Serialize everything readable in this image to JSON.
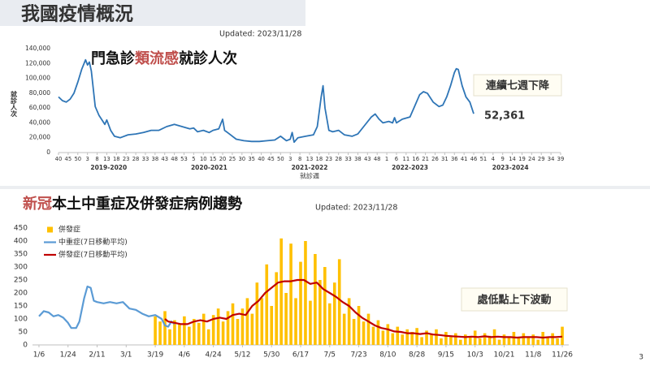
{
  "header": {
    "title": "我國疫情概況",
    "updated": "Updated: 2023/11/28"
  },
  "chart_data": [
    {
      "type": "line",
      "title_parts": [
        {
          "text": "門急診",
          "color": "#111111"
        },
        {
          "text": "類流感",
          "color": "#c0504d"
        },
        {
          "text": "就診人次",
          "color": "#111111"
        }
      ],
      "y_label": "就診人次",
      "x_label": "就診週",
      "seasons": [
        "2019-2020",
        "2020-2021",
        "2021-2022",
        "2022-2023",
        "2023-2024"
      ],
      "annotation": "連續七週下降",
      "xlim": [
        0,
        260
      ],
      "ylim": [
        0,
        140000
      ],
      "yticks": [
        0,
        {
          "value": 20000,
          "label": "20,000"
        },
        {
          "value": 40000,
          "label": "40,000"
        },
        {
          "value": 60000,
          "label": "60,000"
        },
        {
          "value": 80000,
          "label": "80,000"
        },
        {
          "value": 100000,
          "label": "100,000"
        },
        {
          "value": 120000,
          "label": "120,000"
        },
        {
          "value": 140000,
          "label": "140,000"
        }
      ],
      "xticks": [
        {
          "value": 0,
          "label": "40"
        },
        {
          "value": 5,
          "label": "45"
        },
        {
          "value": 10,
          "label": "50"
        },
        {
          "value": 15,
          "label": "3"
        },
        {
          "value": 20,
          "label": "8"
        },
        {
          "value": 25,
          "label": "13"
        },
        {
          "value": 30,
          "label": "18"
        },
        {
          "value": 35,
          "label": "23"
        },
        {
          "value": 40,
          "label": "28"
        },
        {
          "value": 45,
          "label": "33"
        },
        {
          "value": 50,
          "label": "38"
        },
        {
          "value": 55,
          "label": "43"
        },
        {
          "value": 60,
          "label": "48"
        },
        {
          "value": 65,
          "label": "53"
        },
        {
          "value": 70,
          "label": "5"
        },
        {
          "value": 75,
          "label": "10"
        },
        {
          "value": 80,
          "label": "15"
        },
        {
          "value": 85,
          "label": "20"
        },
        {
          "value": 90,
          "label": "25"
        },
        {
          "value": 95,
          "label": "30"
        },
        {
          "value": 100,
          "label": "35"
        },
        {
          "value": 105,
          "label": "40"
        },
        {
          "value": 110,
          "label": "45"
        },
        {
          "value": 115,
          "label": "50"
        },
        {
          "value": 120,
          "label": "3"
        },
        {
          "value": 125,
          "label": "8"
        },
        {
          "value": 130,
          "label": "13"
        },
        {
          "value": 135,
          "label": "18"
        },
        {
          "value": 140,
          "label": "23"
        },
        {
          "value": 145,
          "label": "28"
        },
        {
          "value": 150,
          "label": "33"
        },
        {
          "value": 155,
          "label": "38"
        },
        {
          "value": 160,
          "label": "43"
        },
        {
          "value": 165,
          "label": "48"
        },
        {
          "value": 170,
          "label": "1"
        },
        {
          "value": 175,
          "label": "6"
        },
        {
          "value": 180,
          "label": "11"
        },
        {
          "value": 185,
          "label": "16"
        },
        {
          "value": 190,
          "label": "21"
        },
        {
          "value": 195,
          "label": "26"
        },
        {
          "value": 200,
          "label": "31"
        },
        {
          "value": 205,
          "label": "36"
        },
        {
          "value": 210,
          "label": "41"
        },
        {
          "value": 215,
          "label": "46"
        },
        {
          "value": 220,
          "label": "51"
        },
        {
          "value": 225,
          "label": "4"
        },
        {
          "value": 230,
          "label": "9"
        },
        {
          "value": 235,
          "label": "14"
        },
        {
          "value": 240,
          "label": "19"
        },
        {
          "value": 245,
          "label": "24"
        },
        {
          "value": 250,
          "label": "29"
        },
        {
          "value": 255,
          "label": "34"
        },
        {
          "value": 260,
          "label": "39"
        }
      ],
      "series": [
        {
          "type": "line",
          "color": "#2e75b6",
          "x": [
            0,
            2,
            4,
            6,
            8,
            10,
            12,
            14,
            15,
            16,
            17,
            19,
            21,
            23,
            24,
            25,
            27,
            29,
            32,
            36,
            40,
            44,
            48,
            52,
            56,
            60,
            64,
            68,
            70,
            72,
            75,
            78,
            80,
            83,
            85,
            86,
            88,
            92,
            96,
            100,
            104,
            108,
            112,
            115,
            118,
            120,
            121,
            122,
            124,
            128,
            132,
            134,
            136,
            137,
            138,
            140,
            142,
            145,
            148,
            152,
            155,
            158,
            162,
            164,
            166,
            168,
            171,
            173,
            174,
            175,
            178,
            182,
            184,
            187,
            189,
            191,
            194,
            197,
            199,
            201,
            203,
            205,
            206,
            207,
            209,
            211,
            213,
            215
          ],
          "values": [
            75000,
            70000,
            68000,
            72000,
            80000,
            95000,
            112000,
            125000,
            118000,
            122000,
            110000,
            62000,
            50000,
            42000,
            38000,
            44000,
            30000,
            22000,
            20000,
            24000,
            25000,
            27000,
            30000,
            30000,
            35000,
            38000,
            35000,
            32000,
            33000,
            28000,
            30000,
            27000,
            30000,
            32000,
            45000,
            30000,
            26000,
            18000,
            16000,
            15000,
            15000,
            16000,
            17000,
            22000,
            16000,
            18000,
            27000,
            14000,
            20000,
            22000,
            24000,
            35000,
            75000,
            90000,
            60000,
            30000,
            28000,
            30000,
            24000,
            22000,
            25000,
            35000,
            48000,
            52000,
            45000,
            40000,
            42000,
            40000,
            47000,
            40000,
            45000,
            48000,
            60000,
            78000,
            82000,
            80000,
            68000,
            62000,
            64000,
            75000,
            90000,
            108000,
            113000,
            112000,
            90000,
            75000,
            68000,
            52361
          ],
          "value_labels": [
            null,
            null,
            null,
            null,
            null,
            null,
            null,
            null,
            null,
            null,
            null,
            null,
            null,
            null,
            null,
            null,
            null,
            null,
            null,
            null,
            null,
            null,
            null,
            null,
            null,
            null,
            null,
            null,
            null,
            null,
            null,
            null,
            null,
            null,
            null,
            null,
            null,
            null,
            null,
            null,
            null,
            null,
            null,
            null,
            null,
            null,
            null,
            null,
            null,
            null,
            null,
            null,
            null,
            null,
            null,
            null,
            null,
            null,
            null,
            null,
            null,
            null,
            null,
            null,
            null,
            null,
            null,
            null,
            null,
            null,
            null,
            null,
            null,
            null,
            null,
            null,
            null,
            null,
            null,
            null,
            null,
            null,
            null,
            null,
            null,
            null,
            null,
            "52,361"
          ],
          "label_color": "#2e75b6"
        }
      ]
    },
    {
      "type": "combo",
      "title_parts": [
        {
          "text": "新冠",
          "color": "#c0504d"
        },
        {
          "text": "本土中重症及併發症病例趨勢",
          "color": "#111111"
        }
      ],
      "updated": "Updated: 2023/11/28",
      "annotation": "處低點上下波動",
      "legend": "upper left",
      "xlim": [
        -4,
        328
      ],
      "ylim": [
        0,
        450
      ],
      "yticks": [
        0,
        50,
        100,
        150,
        200,
        250,
        300,
        350,
        400,
        450
      ],
      "xticks": [
        {
          "value": 0,
          "label": "1/6"
        },
        {
          "value": 18,
          "label": "1/24"
        },
        {
          "value": 36,
          "label": "2/11"
        },
        {
          "value": 54,
          "label": "3/1"
        },
        {
          "value": 72,
          "label": "3/19"
        },
        {
          "value": 90,
          "label": "4/6"
        },
        {
          "value": 108,
          "label": "4/24"
        },
        {
          "value": 126,
          "label": "5/12"
        },
        {
          "value": 144,
          "label": "5/30"
        },
        {
          "value": 162,
          "label": "6/17"
        },
        {
          "value": 180,
          "label": "7/5"
        },
        {
          "value": 198,
          "label": "7/23"
        },
        {
          "value": 216,
          "label": "8/10"
        },
        {
          "value": 234,
          "label": "8/28"
        },
        {
          "value": 252,
          "label": "9/15"
        },
        {
          "value": 270,
          "label": "10/3"
        },
        {
          "value": 288,
          "label": "10/21"
        },
        {
          "value": 306,
          "label": "11/8"
        },
        {
          "value": 324,
          "label": "11/26"
        }
      ],
      "series": [
        {
          "type": "bar",
          "name": "併發症",
          "color": "#ffc000",
          "x": [
            72,
            75,
            78,
            81,
            84,
            87,
            90,
            93,
            96,
            99,
            102,
            105,
            108,
            111,
            114,
            117,
            120,
            123,
            126,
            129,
            132,
            135,
            138,
            141,
            144,
            147,
            150,
            153,
            156,
            159,
            162,
            165,
            168,
            171,
            174,
            177,
            180,
            183,
            186,
            189,
            192,
            195,
            198,
            201,
            204,
            207,
            210,
            213,
            216,
            219,
            222,
            225,
            228,
            231,
            234,
            237,
            240,
            243,
            246,
            249,
            252,
            255,
            258,
            261,
            264,
            267,
            270,
            273,
            276,
            279,
            282,
            285,
            288,
            291,
            294,
            297,
            300,
            303,
            306,
            309,
            312,
            315,
            318,
            321,
            324
          ],
          "values": [
            110,
            90,
            130,
            60,
            95,
            80,
            110,
            70,
            100,
            85,
            120,
            60,
            115,
            140,
            90,
            130,
            160,
            100,
            140,
            180,
            120,
            240,
            180,
            310,
            150,
            280,
            410,
            200,
            390,
            180,
            320,
            400,
            170,
            350,
            250,
            300,
            160,
            240,
            330,
            120,
            180,
            100,
            150,
            90,
            120,
            70,
            95,
            55,
            80,
            45,
            70,
            40,
            60,
            50,
            65,
            30,
            55,
            40,
            60,
            25,
            50,
            30,
            45,
            20,
            40,
            30,
            55,
            25,
            45,
            35,
            60,
            20,
            40,
            30,
            50,
            25,
            45,
            30,
            40,
            20,
            50,
            30,
            45,
            25,
            70
          ]
        },
        {
          "type": "line",
          "name": "中重症(7日移動平均)",
          "color": "#5b9bd5",
          "x": [
            0,
            3,
            6,
            9,
            12,
            15,
            18,
            20,
            23,
            25,
            28,
            30,
            32,
            34,
            36,
            40,
            44,
            48,
            52,
            56,
            60,
            64,
            68,
            72,
            76,
            78,
            80,
            82,
            84
          ],
          "values": [
            110,
            130,
            125,
            110,
            115,
            105,
            85,
            65,
            65,
            90,
            180,
            225,
            220,
            170,
            165,
            160,
            165,
            160,
            165,
            140,
            135,
            120,
            110,
            115,
            100,
            75,
            70,
            90,
            80
          ]
        },
        {
          "type": "line",
          "name": "併發症(7日移動平均)",
          "color": "#c00000",
          "x": [
            78,
            80,
            84,
            88,
            92,
            96,
            100,
            104,
            108,
            112,
            116,
            120,
            124,
            128,
            132,
            136,
            140,
            144,
            148,
            152,
            156,
            160,
            164,
            168,
            172,
            176,
            180,
            184,
            188,
            192,
            196,
            200,
            204,
            208,
            212,
            216,
            220,
            224,
            228,
            232,
            236,
            240,
            244,
            248,
            252,
            256,
            260,
            264,
            268,
            272,
            276,
            280,
            284,
            288,
            292,
            296,
            300,
            304,
            308,
            312,
            316,
            320,
            324
          ],
          "values": [
            100,
            90,
            85,
            80,
            80,
            90,
            95,
            90,
            100,
            105,
            100,
            115,
            120,
            115,
            150,
            170,
            200,
            220,
            240,
            245,
            245,
            250,
            250,
            235,
            240,
            215,
            200,
            185,
            165,
            150,
            125,
            105,
            90,
            75,
            65,
            60,
            52,
            50,
            45,
            45,
            42,
            45,
            40,
            38,
            35,
            33,
            32,
            30,
            32,
            30,
            33,
            30,
            32,
            30,
            30,
            28,
            30,
            30,
            30,
            28,
            30,
            30,
            32
          ]
        }
      ]
    }
  ],
  "page_number": "3"
}
